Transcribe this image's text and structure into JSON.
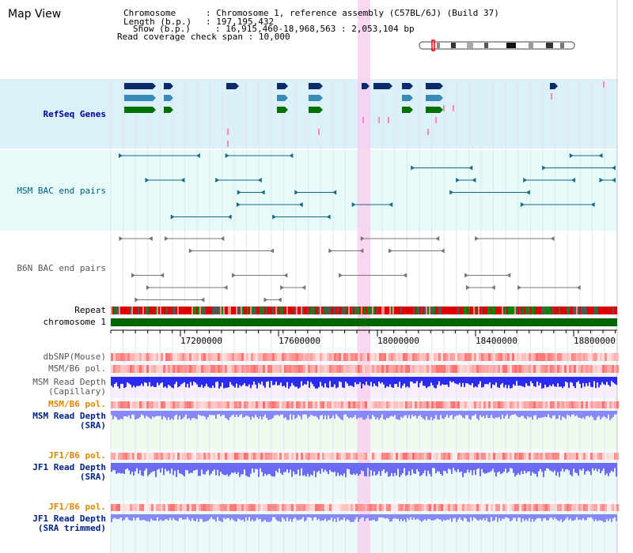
{
  "title": "Map View",
  "header": {
    "chromosome_label": "Chromosome",
    "chromosome_value": "Chromosome 1, reference assembly (C57BL/6J) (Build 37)",
    "length_label": "Length (b.p.)",
    "length_value": "197,195,432",
    "show_label": "Show (b.p.)",
    "show_value": "16,915,460-18,968,563 : 2,053,104 bp",
    "coverage_label": "Read coverage check span",
    "coverage_value": "10,000"
  },
  "tracks": {
    "refseq": "RefSeq Genes",
    "msm_bac": "MSM BAC end pairs",
    "b6n_bac": "B6N BAC end pairs",
    "repeat": "Repeat",
    "chromosome": "chromosome 1",
    "dbsnp": "dbSNP(Mouse)",
    "msm_b6_pol_1": "MSM/B6 pol.",
    "msm_rd_cap_1": "MSM Read Depth",
    "msm_rd_cap_2": "(Capillary)",
    "msm_b6_pol_2": "MSM/B6 pol.",
    "msm_rd_sra_1": "MSM Read Depth",
    "msm_rd_sra_2": "(SRA)",
    "jf1_b6_pol_1": "JF1/B6 pol.",
    "jf1_rd_sra_1": "JF1 Read Depth",
    "jf1_rd_sra_2": "(SRA)",
    "jf1_b6_pol_2": "JF1/B6 pol.",
    "jf1_rd_trim_1": "JF1 Read Depth",
    "jf1_rd_trim_2": "(SRA trimmed)"
  },
  "axis": {
    "ticks": [
      "17200000",
      "17600000",
      "18000000",
      "18400000",
      "18800000"
    ]
  },
  "colors": {
    "refseq_bg": "#dcf0fa",
    "bac_bg": "#e6fafa",
    "highlight": "#f8d0ee",
    "chromosome_bar": "#006600",
    "depth_blue": "#2a2af0",
    "depth_light": "#8888f8"
  }
}
